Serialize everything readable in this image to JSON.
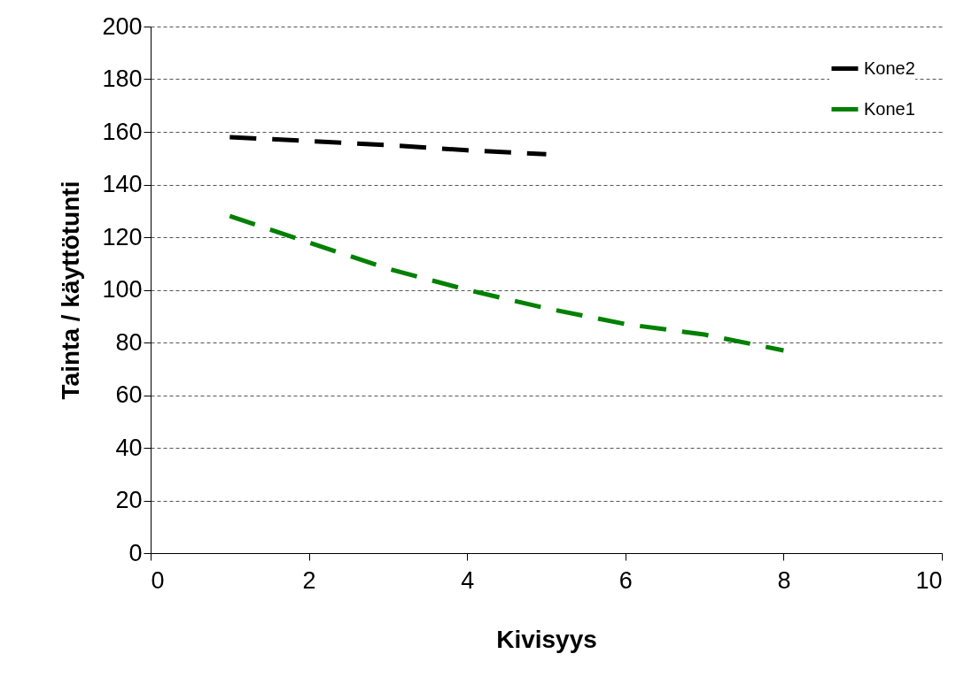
{
  "chart_data": {
    "type": "line",
    "xlabel": "Kivisyys",
    "ylabel": "Tainta / käyttötunti",
    "xlim": [
      0,
      10
    ],
    "xticks": [
      0,
      2,
      4,
      6,
      8,
      10
    ],
    "ylim": [
      0,
      200
    ],
    "yticks": [
      0,
      20,
      40,
      60,
      80,
      100,
      120,
      140,
      160,
      180,
      200
    ],
    "grid": "y",
    "legend": "top right",
    "line_style": "dashed",
    "marker": "none",
    "series": [
      {
        "name": "Kone2",
        "color": "#000000",
        "x": [
          1,
          2,
          3,
          4,
          5
        ],
        "values": [
          158,
          156.5,
          155,
          153,
          151.5
        ]
      },
      {
        "name": "Kone1",
        "color": "#008000",
        "x": [
          1,
          2,
          3,
          4,
          5,
          6,
          7,
          8
        ],
        "values": [
          128,
          118,
          108,
          100,
          93,
          87,
          83,
          77
        ]
      }
    ]
  }
}
